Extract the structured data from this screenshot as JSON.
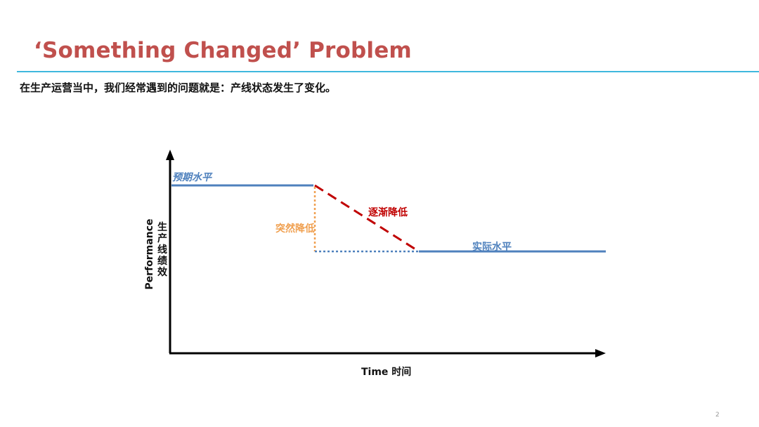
{
  "slide": {
    "title": "‘Something Changed’  Problem",
    "subtitle": "在生产运营当中，我们经常遇到的问题就是：产线状态发生了变化。",
    "page_number": "2"
  },
  "diagram": {
    "y_axis_label_en": "Performance",
    "y_axis_label_zh": "生产线绩效",
    "x_axis_label": "Time 时间",
    "labels": {
      "expected_level": "预期水平",
      "gradual_drop": "逐渐降低",
      "sudden_drop": "突然降低",
      "actual_level": "实际水平"
    },
    "colors": {
      "level_line": "#4f81bd",
      "gradual_line": "#c00000",
      "sudden_line": "#f0a050",
      "title": "#c0504d",
      "rule": "#3fb8dd"
    }
  }
}
